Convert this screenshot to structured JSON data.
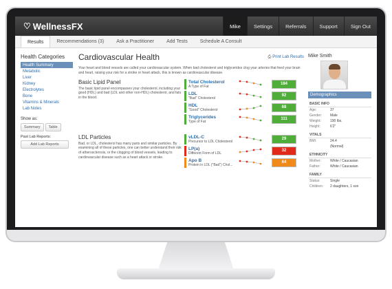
{
  "topbar": {
    "logo": "WellnessFX",
    "nav": [
      "Mike",
      "Settings",
      "Referrals",
      "Support",
      "Sign Out"
    ]
  },
  "subnav": [
    "Results",
    "Recommendations (3)",
    "Ask a Practitioner",
    "Add Tests",
    "Schedule A Consult"
  ],
  "sidebar": {
    "title": "Health Categories",
    "items": [
      "Health Summary",
      "Metabolic",
      "Liver",
      "Kidney",
      "Electrolytes",
      "Bone",
      "Vitamins & Minerals",
      "Lab Notes"
    ],
    "show_as": "Show as:",
    "summary_btn": "Summary",
    "table_btn": "Table",
    "past_label": "Past Lab Reports:",
    "add_btn": "Add Lab Reports"
  },
  "content": {
    "title": "Cardiovascular Health",
    "print": "Print Lab Results",
    "intro": "Your heart and blood vessels are called your cardiovascular system. When bad cholesterol and triglycerides clog your arteries that feed your brain and heart, raising your risk for a stroke or heart attack, this is known as cardiovascular disease.",
    "sections": [
      {
        "title": "Basic Lipid Panel",
        "desc": "The basic lipid panel encompasses your cholesterol, including your good (HDL) and bad (LDL and other non-HDL) cholesterol, and fats in the blood.",
        "metrics": [
          {
            "name": "Total Cholesterol",
            "sub": "A Type of Fat",
            "value": "184",
            "status": "green"
          },
          {
            "name": "LDL",
            "sub": "\"Bad\" Cholesterol",
            "value": "92",
            "status": "green"
          },
          {
            "name": "HDL",
            "sub": "\"Good\" Cholesterol",
            "value": "68",
            "status": "green"
          },
          {
            "name": "Triglycerides",
            "sub": "Type of Fat",
            "value": "111",
            "status": "green"
          }
        ]
      },
      {
        "title": "LDL Particles",
        "desc": "Bad, or LDL, cholesterol has many parts and similar particles. By examining all of these particles, one can better understand their risk of atherosclerosis, or the clogging of blood vessels, leading to cardiovascular disease such as a heart attack or stroke.",
        "metrics": [
          {
            "name": "vLDL-C",
            "sub": "Precursor to LDL Cholesterol",
            "value": "29",
            "status": "green"
          },
          {
            "name": "LP(a)",
            "sub": "Different Form of LDL",
            "value": "32",
            "status": "red"
          },
          {
            "name": "Apo B",
            "sub": "Protein in LDL (\"Bad\") Chol...",
            "value": "64",
            "status": "orange"
          }
        ]
      }
    ]
  },
  "profile": {
    "name": "Mike Smith",
    "demographics": "Demographics",
    "basic_info": "BASIC INFO",
    "age_k": "Age:",
    "age_v": "37",
    "gender_k": "Gender:",
    "gender_v": "Male",
    "weight_k": "Weight:",
    "weight_v": "190 lbs.",
    "height_k": "Height:",
    "height_v": "6'2\"",
    "vitals": "VITALS",
    "bmi_k": "BMI:",
    "bmi_v": "24.4",
    "bmi_note": "(Normal)",
    "ethnicity": "ETHNICITY",
    "mother_k": "Mother:",
    "mother_v": "White / Caucasian",
    "father_k": "Father:",
    "father_v": "White / Caucasian",
    "family": "FAMILY",
    "status_k": "Status:",
    "status_v": "Single",
    "children_k": "Children:",
    "children_v": "2 daughters, 1 son"
  },
  "colors": {
    "green": "#4fae3a",
    "red": "#e22a1b",
    "orange": "#f08a1b",
    "accent": "#6a8fb8"
  }
}
